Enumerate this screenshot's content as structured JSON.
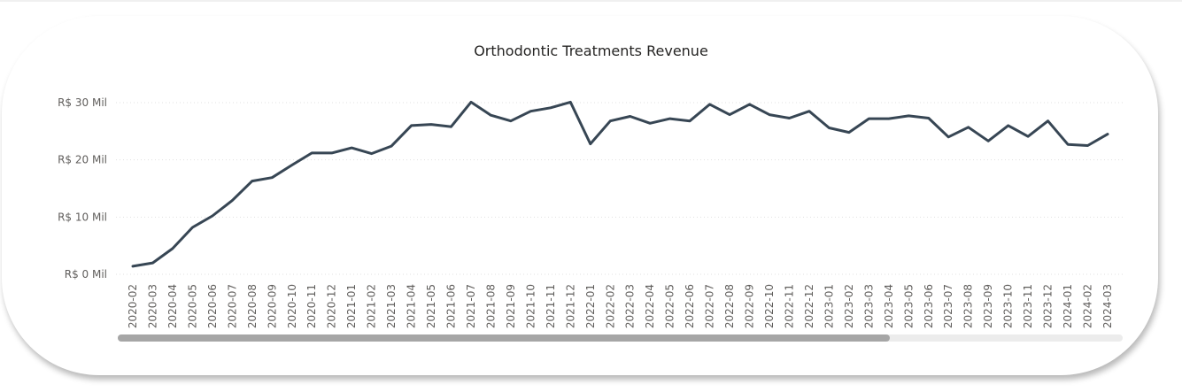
{
  "chart_data": {
    "type": "line",
    "title": "Orthodontic Treatments Revenue",
    "xlabel": "",
    "ylabel": "",
    "ylim": [
      0,
      30
    ],
    "y_ticks": [
      {
        "value": 0,
        "label": "R$ 0 Mil"
      },
      {
        "value": 10,
        "label": "R$ 10 Mil"
      },
      {
        "value": 20,
        "label": "R$ 20 Mil"
      },
      {
        "value": 30,
        "label": "R$ 30 Mil"
      }
    ],
    "grid": true,
    "line_color": "#374654",
    "grid_color": "#e1e1e1",
    "categories": [
      "2020-02",
      "2020-03",
      "2020-04",
      "2020-05",
      "2020-06",
      "2020-07",
      "2020-08",
      "2020-09",
      "2020-10",
      "2020-11",
      "2020-12",
      "2021-01",
      "2021-02",
      "2021-03",
      "2021-04",
      "2021-05",
      "2021-06",
      "2021-07",
      "2021-08",
      "2021-09",
      "2021-10",
      "2021-11",
      "2021-12",
      "2022-01",
      "2022-02",
      "2022-03",
      "2022-04",
      "2022-05",
      "2022-06",
      "2022-07",
      "2022-08",
      "2022-09",
      "2022-10",
      "2022-11",
      "2022-12",
      "2023-01",
      "2023-02",
      "2023-03",
      "2023-04",
      "2023-05",
      "2023-06",
      "2023-07",
      "2023-08",
      "2023-09",
      "2023-10",
      "2023-11",
      "2023-12",
      "2024-01",
      "2024-02",
      "2024-03"
    ],
    "series": [
      {
        "values": [
          1.4,
          2.0,
          4.5,
          8.2,
          10.2,
          12.9,
          16.3,
          16.9,
          19.1,
          21.2,
          21.2,
          22.1,
          21.1,
          22.4,
          26.0,
          26.2,
          25.8,
          30.1,
          27.8,
          26.8,
          28.5,
          29.1,
          30.1,
          22.8,
          26.8,
          27.6,
          26.4,
          27.2,
          26.8,
          29.7,
          27.9,
          29.7,
          27.9,
          27.3,
          28.5,
          25.6,
          24.8,
          27.2,
          27.2,
          27.7,
          27.3,
          24.0,
          25.7,
          23.3,
          26.0,
          24.1,
          26.8,
          22.7,
          22.5,
          24.5
        ]
      }
    ]
  },
  "scrollbar": {
    "visible_fraction": 0.768
  }
}
